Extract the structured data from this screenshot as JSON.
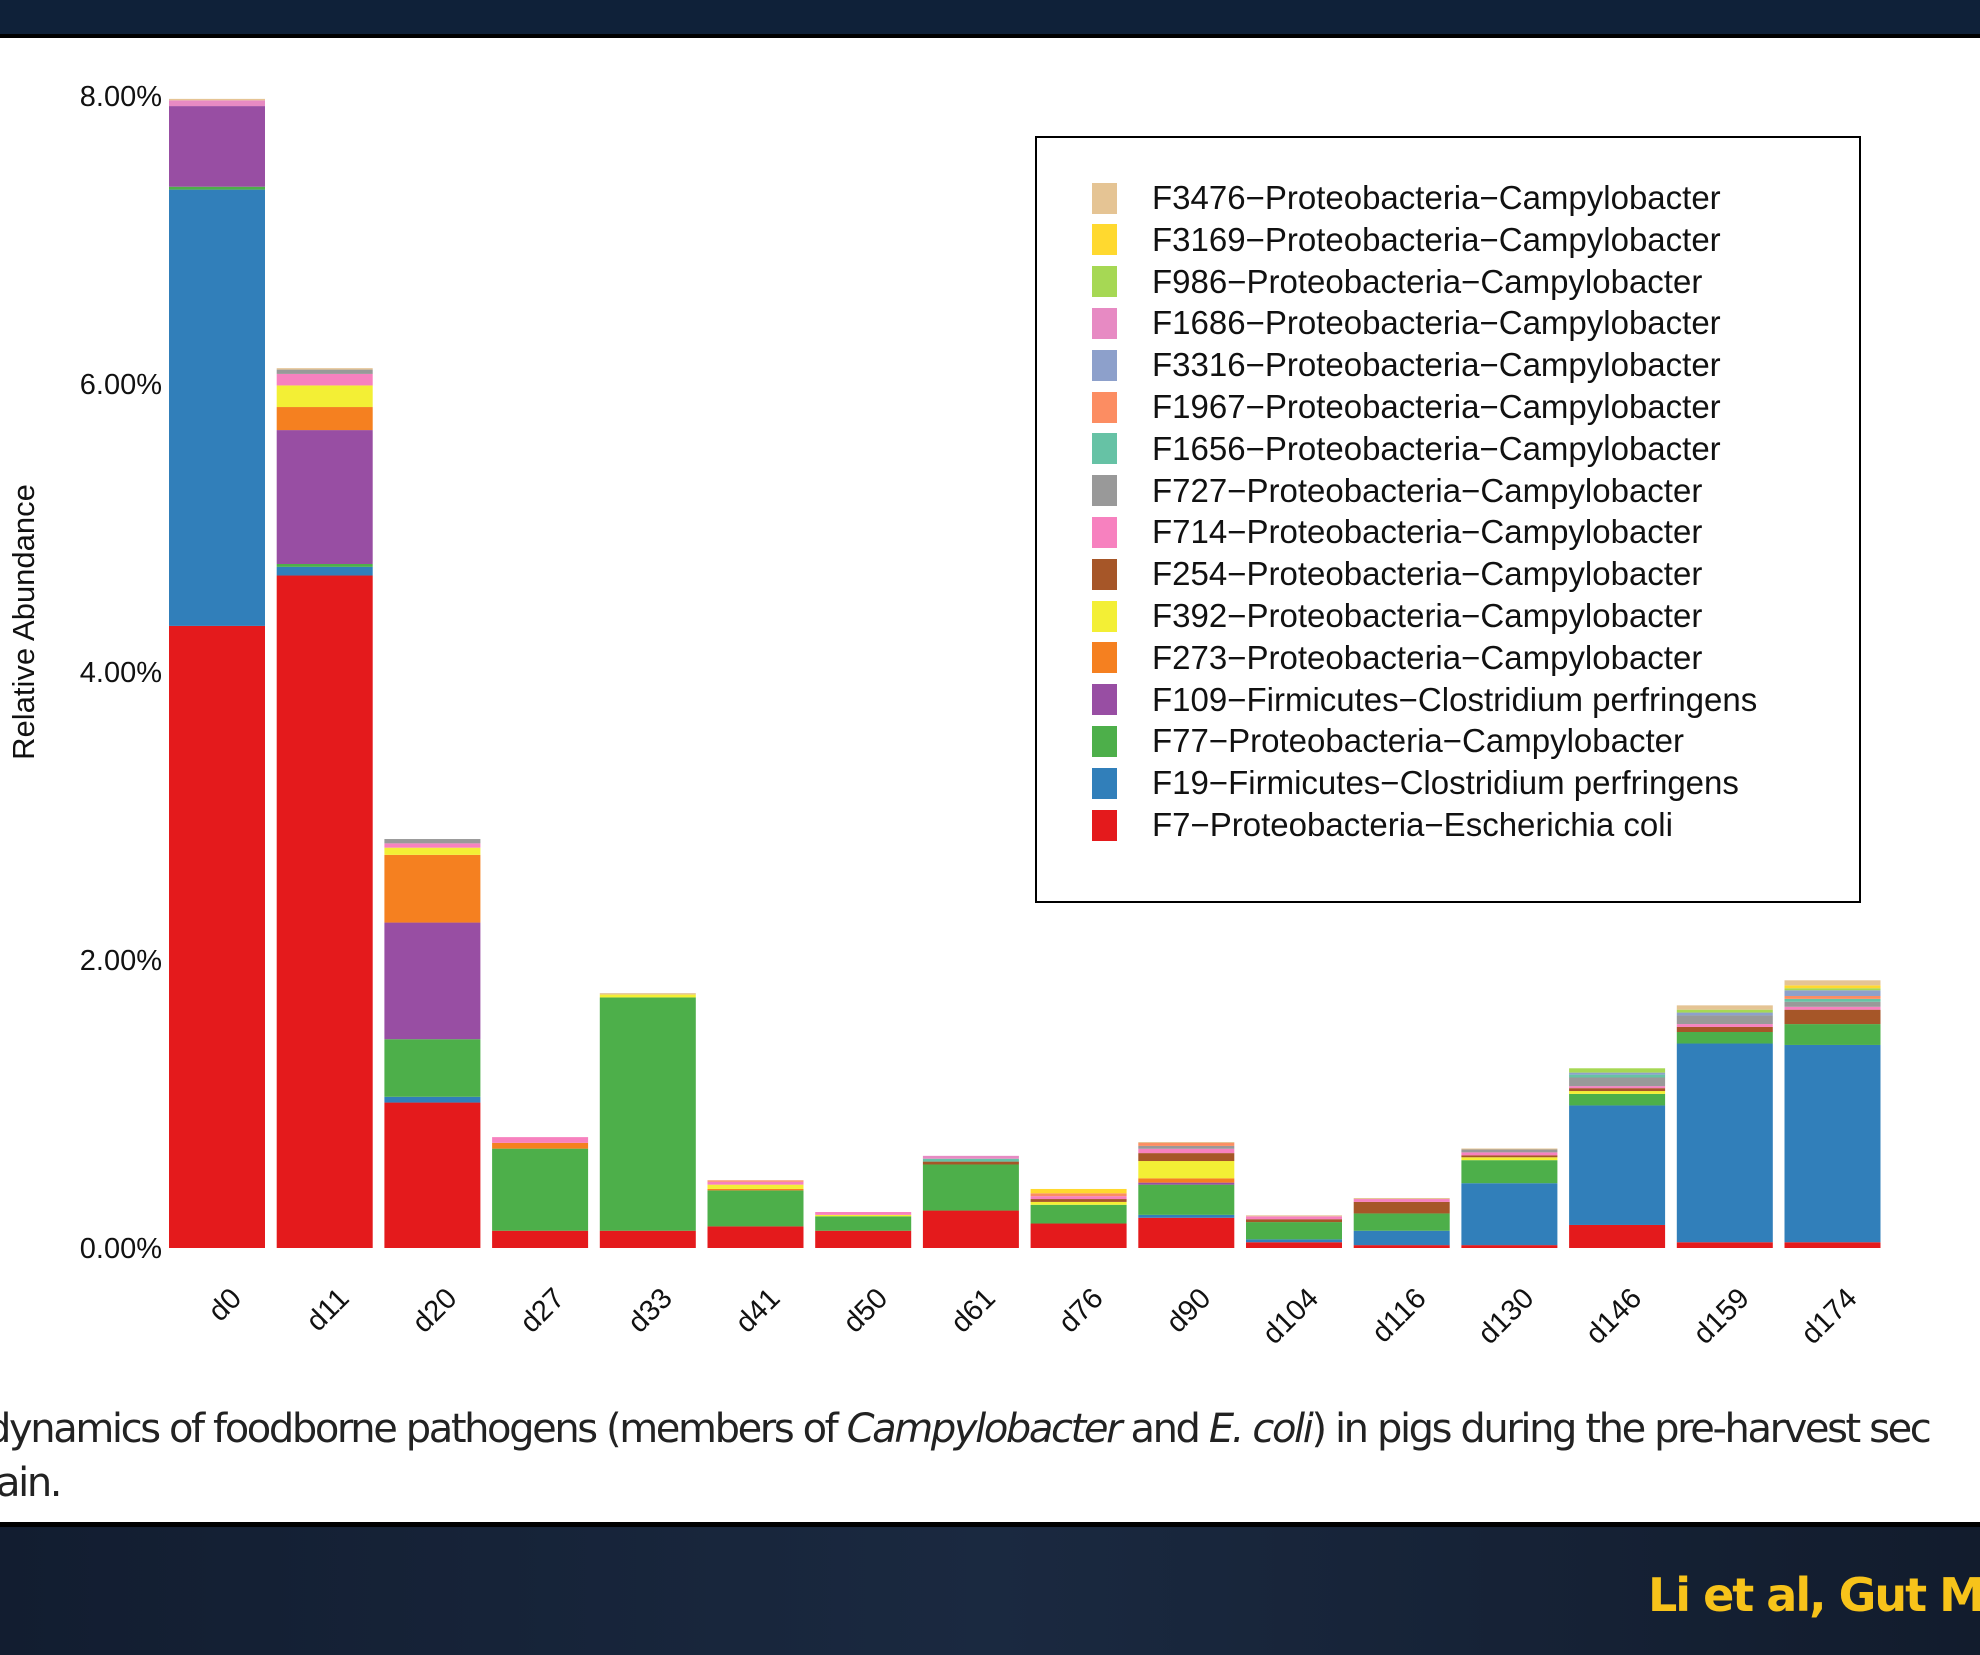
{
  "chart_data": {
    "type": "bar",
    "stacked": true,
    "title": "",
    "xlabel": "",
    "ylabel": "Relative Abundance",
    "ylim": [
      0,
      8
    ],
    "yticks": [
      0,
      2,
      4,
      6,
      8
    ],
    "ytick_labels": [
      "0.00%",
      "2.00%",
      "4.00%",
      "6.00%",
      "8.00%"
    ],
    "grid": false,
    "legend_placement": "top-right",
    "categories": [
      "d0",
      "d11",
      "d20",
      "d27",
      "d33",
      "d41",
      "d50",
      "d61",
      "d76",
      "d90",
      "d104",
      "d116",
      "d130",
      "d146",
      "d159",
      "d174"
    ],
    "series": [
      {
        "name": "F7−Proteobacteria−Escherichia coli",
        "color": "#e41a1c",
        "values": [
          4.32,
          4.67,
          1.01,
          0.12,
          0.12,
          0.15,
          0.12,
          0.26,
          0.17,
          0.21,
          0.04,
          0.02,
          0.02,
          0.16,
          0.04,
          0.04
        ]
      },
      {
        "name": "F19−Firmicutes−Clostridium perfringens",
        "color": "#317fba",
        "values": [
          3.03,
          0.06,
          0.04,
          0,
          0,
          0,
          0,
          0,
          0,
          0.02,
          0.02,
          0.1,
          0.43,
          0.83,
          1.38,
          1.37
        ]
      },
      {
        "name": "F77−Proteobacteria−Campylobacter",
        "color": "#4daf4a",
        "values": [
          0.02,
          0.02,
          0.4,
          0.57,
          1.62,
          0.25,
          0.1,
          0.32,
          0.13,
          0.21,
          0.12,
          0.12,
          0.16,
          0.08,
          0.08,
          0.145
        ]
      },
      {
        "name": "F109−Firmicutes−Clostridium perfringens",
        "color": "#984ea3",
        "values": [
          0.56,
          0.93,
          0.81,
          0,
          0,
          0,
          0,
          0,
          0,
          0.014,
          0,
          0,
          0,
          0,
          0,
          0
        ]
      },
      {
        "name": "F273−Proteobacteria−Campylobacter",
        "color": "#f58020",
        "values": [
          0,
          0.16,
          0.47,
          0.04,
          0,
          0.01,
          0,
          0,
          0,
          0.03,
          0,
          0,
          0,
          0,
          0,
          0
        ]
      },
      {
        "name": "F392−Proteobacteria−Campylobacter",
        "color": "#f3ef35",
        "values": [
          0,
          0.15,
          0.05,
          0,
          0.02,
          0.03,
          0.01,
          0,
          0.02,
          0.12,
          0,
          0,
          0.02,
          0.02,
          0,
          0
        ]
      },
      {
        "name": "F254−Proteobacteria−Campylobacter",
        "color": "#a65628",
        "values": [
          0,
          0,
          0,
          0,
          0,
          0,
          0,
          0.02,
          0.02,
          0.055,
          0.02,
          0.08,
          0.014,
          0.02,
          0.035,
          0.1
        ]
      },
      {
        "name": "F714−Proteobacteria−Campylobacter",
        "color": "#f781bf",
        "values": [
          0,
          0.08,
          0.03,
          0.04,
          0,
          0.02,
          0.02,
          0,
          0.02,
          0.03,
          0.02,
          0.02,
          0.02,
          0.014,
          0.02,
          0.02
        ]
      },
      {
        "name": "F727−Proteobacteria−Campylobacter",
        "color": "#999999",
        "values": [
          0,
          0.03,
          0.03,
          0,
          0,
          0,
          0,
          0,
          0,
          0.02,
          0,
          0,
          0.02,
          0.06,
          0.06,
          0.035
        ]
      },
      {
        "name": "F1656−Proteobacteria−Campylobacter",
        "color": "#66c2a5",
        "values": [
          0,
          0,
          0,
          0,
          0,
          0,
          0,
          0.02,
          0,
          0,
          0,
          0,
          0,
          0.02,
          0,
          0.02
        ]
      },
      {
        "name": "F1967−Proteobacteria−Campylobacter",
        "color": "#fc8d62",
        "values": [
          0,
          0,
          0,
          0,
          0,
          0.01,
          0,
          0,
          0.02,
          0.02,
          0,
          0,
          0,
          0,
          0,
          0.02
        ]
      },
      {
        "name": "F3316−Proteobacteria−Campylobacter",
        "color": "#8da0cb",
        "values": [
          0,
          0,
          0,
          0,
          0,
          0,
          0,
          0,
          0,
          0,
          0,
          0,
          0,
          0.014,
          0.02,
          0.04
        ]
      },
      {
        "name": "F1686−Proteobacteria−Campylobacter",
        "color": "#e78ac3",
        "values": [
          0.04,
          0,
          0,
          0,
          0,
          0,
          0,
          0.02,
          0,
          0,
          0,
          0,
          0,
          0,
          0,
          0
        ]
      },
      {
        "name": "F986−Proteobacteria−Campylobacter",
        "color": "#a6d854",
        "values": [
          0,
          0,
          0,
          0,
          0,
          0,
          0,
          0,
          0,
          0,
          0,
          0,
          0,
          0.03,
          0.02,
          0.014
        ]
      },
      {
        "name": "F3169−Proteobacteria−Campylobacter",
        "color": "#ffd92f",
        "values": [
          0,
          0,
          0,
          0,
          0,
          0,
          0,
          0,
          0.03,
          0,
          0,
          0,
          0,
          0,
          0,
          0.02
        ]
      },
      {
        "name": "F3476−Proteobacteria−Campylobacter",
        "color": "#e5c494",
        "values": [
          0.01,
          0.01,
          0,
          0,
          0.01,
          0,
          0,
          0,
          0,
          0.007,
          0.007,
          0.007,
          0.007,
          0,
          0.03,
          0.035
        ]
      }
    ]
  },
  "caption": {
    "line1_a": "dynamics of foodborne pathogens (members of ",
    "line1_b": "Campylobacter",
    "line1_c": " and ",
    "line1_d": "E. coli",
    "line1_e": ") in pigs during the pre-harvest sec",
    "line2": "ain."
  },
  "citation": "Li et al, Gut Mi"
}
